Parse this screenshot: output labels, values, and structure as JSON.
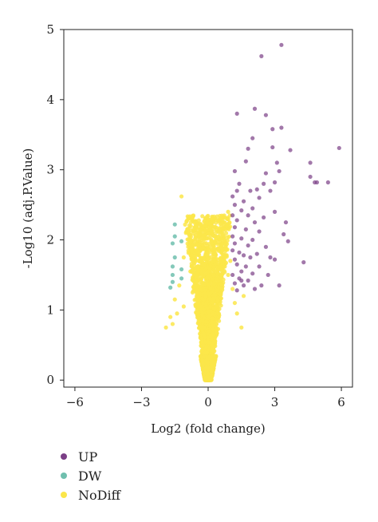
{
  "chart_data": {
    "type": "scatter",
    "title": "",
    "xlabel": "Log2 (fold change)",
    "ylabel": "-Log10 (adj.P.Value)",
    "xlim": [
      -6.5,
      6.5
    ],
    "ylim": [
      -0.1,
      5.0
    ],
    "xticks": [
      -6,
      -3,
      0,
      3,
      6
    ],
    "xtick_labels": [
      "−6",
      "−3",
      "0",
      "3",
      "6"
    ],
    "yticks": [
      0,
      1,
      2,
      3,
      4,
      5
    ],
    "ytick_labels": [
      "0",
      "1",
      "2",
      "3",
      "4",
      "5"
    ],
    "grid": false,
    "legend_position": "bottom-left",
    "series": [
      {
        "name": "UP",
        "color": "#7b3f86",
        "points": [
          [
            3.3,
            4.78
          ],
          [
            2.4,
            4.62
          ],
          [
            1.3,
            3.8
          ],
          [
            2.1,
            3.87
          ],
          [
            2.6,
            3.78
          ],
          [
            2.9,
            3.58
          ],
          [
            2.0,
            3.45
          ],
          [
            3.3,
            3.6
          ],
          [
            2.9,
            3.32
          ],
          [
            5.9,
            3.31
          ],
          [
            1.8,
            3.3
          ],
          [
            3.7,
            3.28
          ],
          [
            4.6,
            3.1
          ],
          [
            3.1,
            3.1
          ],
          [
            1.7,
            3.12
          ],
          [
            2.6,
            2.95
          ],
          [
            3.2,
            2.98
          ],
          [
            1.2,
            2.98
          ],
          [
            4.6,
            2.9
          ],
          [
            4.8,
            2.82
          ],
          [
            4.9,
            2.82
          ],
          [
            5.4,
            2.82
          ],
          [
            1.4,
            2.8
          ],
          [
            2.5,
            2.8
          ],
          [
            3.0,
            2.82
          ],
          [
            2.2,
            2.72
          ],
          [
            1.3,
            2.7
          ],
          [
            1.9,
            2.7
          ],
          [
            2.8,
            2.7
          ],
          [
            1.1,
            2.62
          ],
          [
            2.3,
            2.6
          ],
          [
            1.6,
            2.55
          ],
          [
            1.2,
            2.5
          ],
          [
            2.0,
            2.45
          ],
          [
            1.5,
            2.42
          ],
          [
            3.0,
            2.4
          ],
          [
            1.1,
            2.35
          ],
          [
            1.8,
            2.35
          ],
          [
            2.5,
            2.32
          ],
          [
            1.3,
            2.28
          ],
          [
            2.1,
            2.25
          ],
          [
            3.5,
            2.25
          ],
          [
            1.2,
            2.18
          ],
          [
            1.7,
            2.15
          ],
          [
            2.3,
            2.12
          ],
          [
            3.4,
            2.08
          ],
          [
            1.1,
            2.05
          ],
          [
            1.5,
            2.02
          ],
          [
            2.0,
            2.0
          ],
          [
            3.6,
            1.98
          ],
          [
            1.2,
            1.95
          ],
          [
            1.8,
            1.92
          ],
          [
            2.6,
            1.9
          ],
          [
            1.1,
            1.85
          ],
          [
            1.4,
            1.82
          ],
          [
            2.2,
            1.8
          ],
          [
            1.6,
            1.78
          ],
          [
            1.9,
            1.75
          ],
          [
            2.8,
            1.75
          ],
          [
            4.3,
            1.68
          ],
          [
            3.0,
            1.72
          ],
          [
            1.2,
            1.72
          ],
          [
            1.3,
            1.65
          ],
          [
            1.7,
            1.62
          ],
          [
            2.3,
            1.62
          ],
          [
            1.5,
            1.55
          ],
          [
            2.0,
            1.52
          ],
          [
            2.7,
            1.5
          ],
          [
            1.1,
            1.5
          ],
          [
            1.4,
            1.45
          ],
          [
            1.8,
            1.42
          ],
          [
            1.2,
            1.38
          ],
          [
            1.6,
            1.35
          ],
          [
            2.4,
            1.35
          ],
          [
            3.2,
            1.35
          ],
          [
            1.3,
            1.28
          ],
          [
            1.5,
            1.42
          ],
          [
            2.1,
            1.3
          ]
        ]
      },
      {
        "name": "DW",
        "color": "#6fbfae",
        "points": [
          [
            -1.5,
            2.22
          ],
          [
            -1.5,
            2.05
          ],
          [
            -1.6,
            1.95
          ],
          [
            -1.2,
            1.98
          ],
          [
            -1.5,
            1.75
          ],
          [
            -1.6,
            1.62
          ],
          [
            -1.2,
            1.58
          ],
          [
            -1.6,
            1.5
          ],
          [
            -1.2,
            1.45
          ],
          [
            -1.6,
            1.4
          ],
          [
            -1.7,
            1.32
          ]
        ]
      },
      {
        "name": "NoDiff",
        "color": "#fbe64a",
        "points": [
          [
            -1.2,
            2.62
          ],
          [
            -0.9,
            2.3
          ],
          [
            -1.0,
            2.1
          ],
          [
            0.9,
            2.4
          ],
          [
            -0.9,
            1.9
          ],
          [
            0.8,
            1.95
          ],
          [
            -1.1,
            1.75
          ],
          [
            1.0,
            1.7
          ],
          [
            -1.3,
            1.35
          ],
          [
            0.9,
            1.5
          ],
          [
            -0.8,
            1.55
          ],
          [
            0.7,
            1.62
          ],
          [
            -1.5,
            1.15
          ],
          [
            1.2,
            1.1
          ],
          [
            -1.7,
            0.9
          ],
          [
            -1.6,
            0.8
          ],
          [
            1.5,
            0.75
          ],
          [
            -1.9,
            0.75
          ],
          [
            1.6,
            1.2
          ],
          [
            -1.4,
            0.95
          ],
          [
            1.3,
            0.95
          ],
          [
            -1.1,
            1.05
          ],
          [
            1.1,
            1.3
          ],
          [
            -0.7,
            1.25
          ]
        ]
      }
    ]
  },
  "legend": {
    "items": [
      {
        "label": "UP",
        "color": "#7b3f86"
      },
      {
        "label": "DW",
        "color": "#6fbfae"
      },
      {
        "label": "NoDiff",
        "color": "#fbe64a"
      }
    ]
  }
}
